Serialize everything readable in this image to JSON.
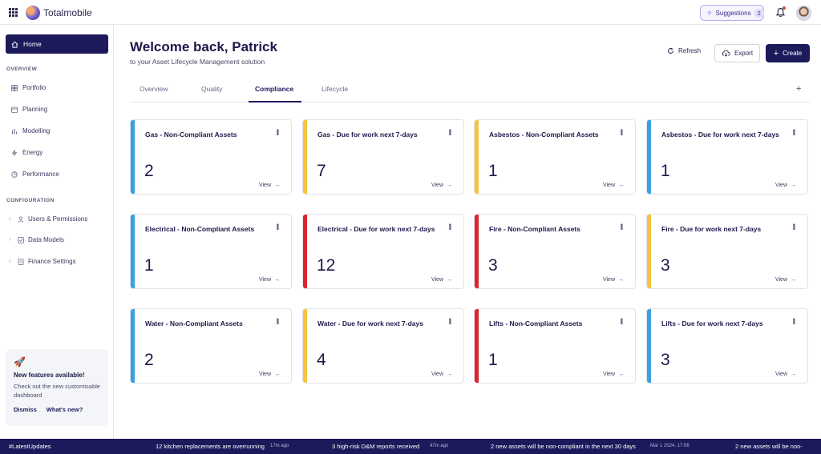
{
  "app": {
    "brand": "Totalmobile"
  },
  "topbar": {
    "suggestions_label": "Suggestions",
    "suggestions_count": "2"
  },
  "sidebar": {
    "home_label": "Home",
    "overview_title": "OVERVIEW",
    "overview_items": [
      {
        "label": "Portfolio",
        "icon": "grid-icon"
      },
      {
        "label": "Planning",
        "icon": "calendar-icon"
      },
      {
        "label": "Modelling",
        "icon": "chart-icon"
      },
      {
        "label": "Energy",
        "icon": "bolt-icon"
      },
      {
        "label": "Performance",
        "icon": "pie-icon"
      }
    ],
    "config_title": "CONFIGURATION",
    "config_items": [
      {
        "label": "Users & Permissions",
        "icon": "users-icon"
      },
      {
        "label": "Data Models",
        "icon": "check-square-icon"
      },
      {
        "label": "Finance Settings",
        "icon": "document-icon"
      }
    ],
    "promo": {
      "title": "New features available!",
      "text": "Check out the new customisable dashboard",
      "dismiss": "Dismiss",
      "whats_new": "What's new?"
    }
  },
  "header": {
    "welcome": "Welcome back, Patrick",
    "subtitle": "to your Asset Lifecycle Management solution",
    "refresh_label": "Refresh",
    "export_label": "Export",
    "create_label": "Create"
  },
  "tabs": [
    {
      "label": "Overview"
    },
    {
      "label": "Quality"
    },
    {
      "label": "Compliance",
      "active": true
    },
    {
      "label": "Lifecycle"
    }
  ],
  "colors": {
    "blue": "#3aa0e0",
    "yellow": "#f5c542",
    "red": "#d9262e",
    "navy": "#1c1a5a"
  },
  "cards": [
    {
      "title": "Gas - Non-Compliant Assets",
      "value": "2",
      "status": "blue",
      "view": "View"
    },
    {
      "title": "Gas - Due for work next 7-days",
      "value": "7",
      "status": "yellow",
      "view": "View"
    },
    {
      "title": "Asbestos - Non-Compliant Assets",
      "value": "1",
      "status": "yellow",
      "view": "View"
    },
    {
      "title": "Asbestos - Due for work next 7-days",
      "value": "1",
      "status": "blue",
      "view": "View"
    },
    {
      "title": "Electrical - Non-Compliant Assets",
      "value": "1",
      "status": "blue",
      "view": "View"
    },
    {
      "title": "Electrical - Due for work next 7-days",
      "value": "12",
      "status": "red",
      "view": "View"
    },
    {
      "title": "Fire - Non-Compliant Assets",
      "value": "3",
      "status": "red",
      "view": "View"
    },
    {
      "title": "Fire - Due for work next 7-days",
      "value": "3",
      "status": "yellow",
      "view": "View"
    },
    {
      "title": "Water - Non-Compliant Assets",
      "value": "2",
      "status": "blue",
      "view": "View"
    },
    {
      "title": "Water - Due for work next 7-days",
      "value": "4",
      "status": "yellow",
      "view": "View"
    },
    {
      "title": "Lifts - Non-Compliant Assets",
      "value": "1",
      "status": "red",
      "view": "View"
    },
    {
      "title": "Lifts - Due for work next 7-days",
      "value": "3",
      "status": "blue",
      "view": "View"
    }
  ],
  "ticker": {
    "tag": "#LatestUpdates",
    "items": [
      {
        "msg": "12 kitchen replacements are overrunning",
        "time": "17m ago"
      },
      {
        "msg": "3 high-risk D&M reports received",
        "time": "47m ago"
      },
      {
        "msg": "2 new assets will be non-compliant in the next 30 days",
        "time": "Mar 1 2024, 17:06"
      },
      {
        "msg": "2 new assets will be non-",
        "time": ""
      }
    ]
  }
}
